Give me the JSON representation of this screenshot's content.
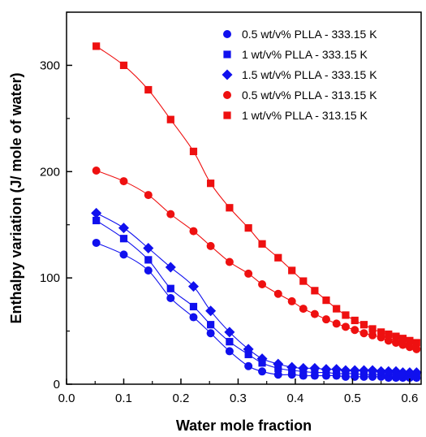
{
  "chart_data": {
    "type": "scatter",
    "title": "",
    "xlabel": "Water mole fraction",
    "ylabel": "Enthalpy variation (J/ mole of water)",
    "xlim": [
      0.0,
      0.62
    ],
    "ylim": [
      0,
      350
    ],
    "x_ticks": [
      "0.0",
      "0.1",
      "0.2",
      "0.3",
      "0.4",
      "0.5",
      "0.6"
    ],
    "y_ticks": [
      "0",
      "100",
      "200",
      "300"
    ],
    "grid": false,
    "legend_position": "top-right",
    "fit_lines": true,
    "series": [
      {
        "name": "0.5 wt/v% PLLA - 333.15 K",
        "marker": "circle",
        "color": "#1010ee",
        "x": [
          0.052,
          0.1,
          0.143,
          0.182,
          0.222,
          0.252,
          0.285,
          0.318,
          0.342,
          0.37,
          0.394,
          0.414,
          0.434,
          0.454,
          0.472,
          0.488,
          0.504,
          0.52,
          0.535,
          0.55,
          0.563,
          0.576,
          0.588,
          0.6,
          0.612
        ],
        "y": [
          133,
          122,
          107,
          81,
          63,
          48,
          31,
          17,
          12,
          9,
          9,
          8,
          8,
          8,
          8,
          7,
          7,
          7,
          7,
          7,
          6,
          6,
          6,
          6,
          6
        ]
      },
      {
        "name": "1 wt/v% PLLA - 333.15 K",
        "marker": "square",
        "color": "#1010ee",
        "x": [
          0.052,
          0.1,
          0.143,
          0.182,
          0.222,
          0.252,
          0.285,
          0.318,
          0.342,
          0.37,
          0.394,
          0.414,
          0.434,
          0.454,
          0.472,
          0.488,
          0.504,
          0.52,
          0.535,
          0.55,
          0.563,
          0.576,
          0.588,
          0.6,
          0.612
        ],
        "y": [
          154,
          137,
          117,
          90,
          73,
          56,
          40,
          28,
          20,
          15,
          13,
          12,
          11,
          11,
          10,
          10,
          10,
          9,
          9,
          9,
          9,
          9,
          9,
          9,
          9
        ]
      },
      {
        "name": "1.5 wt/v% PLLA - 333.15 K",
        "marker": "diamond",
        "color": "#1010ee",
        "x": [
          0.052,
          0.1,
          0.143,
          0.182,
          0.222,
          0.252,
          0.285,
          0.318,
          0.342,
          0.37,
          0.394,
          0.414,
          0.434,
          0.454,
          0.472,
          0.488,
          0.504,
          0.52,
          0.535,
          0.55,
          0.563,
          0.576,
          0.588,
          0.6,
          0.612
        ],
        "y": [
          161,
          147,
          128,
          110,
          92,
          69,
          49,
          33,
          24,
          19,
          16,
          15,
          15,
          14,
          14,
          13,
          13,
          13,
          13,
          12,
          12,
          12,
          11,
          11,
          11
        ]
      },
      {
        "name": "0.5 wt/v% PLLA - 313.15 K",
        "marker": "circle",
        "color": "#ee1010",
        "x": [
          0.052,
          0.1,
          0.143,
          0.182,
          0.222,
          0.252,
          0.285,
          0.318,
          0.342,
          0.37,
          0.394,
          0.414,
          0.434,
          0.454,
          0.472,
          0.488,
          0.504,
          0.52,
          0.535,
          0.55,
          0.563,
          0.576,
          0.588,
          0.6,
          0.612
        ],
        "y": [
          201,
          191,
          178,
          160,
          144,
          130,
          115,
          104,
          94,
          85,
          78,
          71,
          66,
          61,
          57,
          54,
          51,
          48,
          46,
          44,
          41,
          39,
          37,
          35,
          33
        ]
      },
      {
        "name": "1 wt/v% PLLA - 313.15 K",
        "marker": "square",
        "color": "#ee1010",
        "x": [
          0.052,
          0.1,
          0.143,
          0.182,
          0.222,
          0.252,
          0.285,
          0.318,
          0.342,
          0.37,
          0.394,
          0.414,
          0.434,
          0.454,
          0.472,
          0.488,
          0.504,
          0.52,
          0.535,
          0.55,
          0.563,
          0.576,
          0.588,
          0.6,
          0.612
        ],
        "y": [
          318,
          300,
          277,
          249,
          219,
          189,
          166,
          147,
          132,
          119,
          107,
          97,
          88,
          79,
          71,
          65,
          60,
          56,
          52,
          49,
          47,
          45,
          43,
          41,
          39
        ]
      }
    ]
  }
}
